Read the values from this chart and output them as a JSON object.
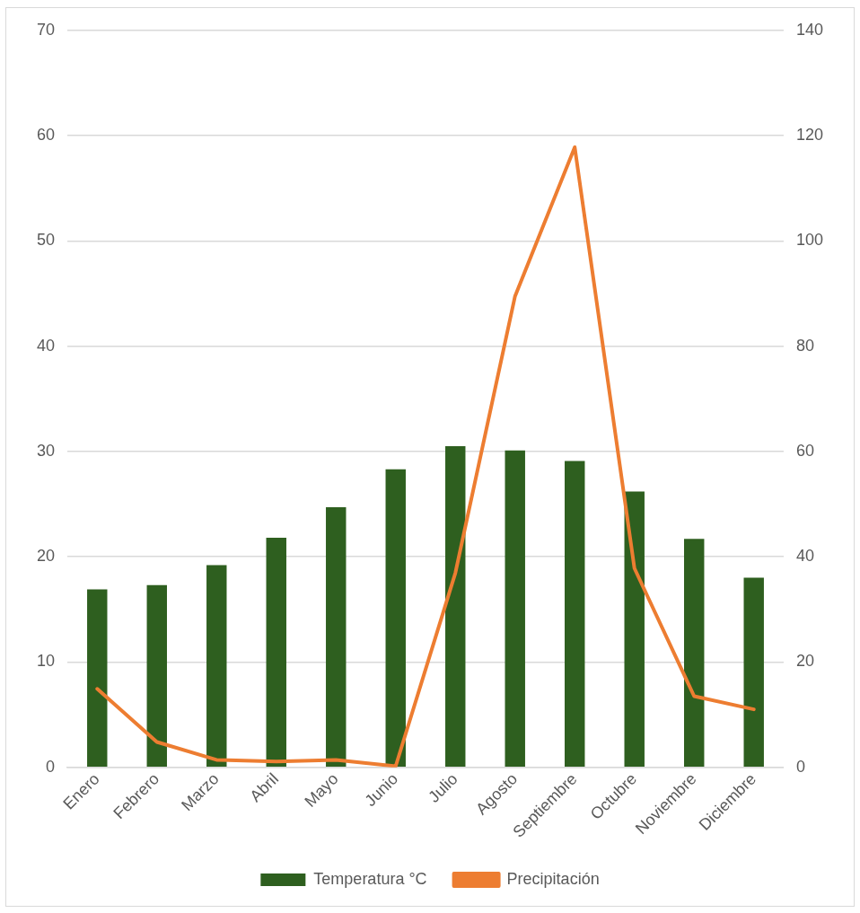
{
  "chart_data": {
    "type": "bar",
    "categories": [
      "Enero",
      "Febrero",
      "Marzo",
      "Abril",
      "Mayo",
      "Junio",
      "Julio",
      "Agosto",
      "Septiembre",
      "Octubre",
      "Noviembre",
      "Diciembre"
    ],
    "series": [
      {
        "name": "Temperatura °C",
        "color": "#2e5f1f",
        "values": [
          16.9,
          17.3,
          19.2,
          21.8,
          24.7,
          28.3,
          30.5,
          30.1,
          29.1,
          26.2,
          21.7,
          18.0
        ]
      },
      {
        "name": "Precipitación",
        "type": "line",
        "axis": "y2",
        "color": "#ed7d31",
        "values": [
          14.9,
          4.8,
          1.4,
          1.1,
          1.4,
          0.2,
          36.9,
          89.5,
          117.8,
          37.8,
          13.5,
          11.0
        ]
      }
    ],
    "ylim": [
      0,
      70
    ],
    "yticks": [
      0,
      10,
      20,
      30,
      40,
      50,
      60,
      70
    ],
    "y2lim": [
      0,
      140
    ],
    "y2ticks": [
      0,
      20,
      40,
      60,
      80,
      100,
      120,
      140
    ],
    "grid": "y",
    "legend": "bottom",
    "marker": "none",
    "line_style": "solid"
  }
}
